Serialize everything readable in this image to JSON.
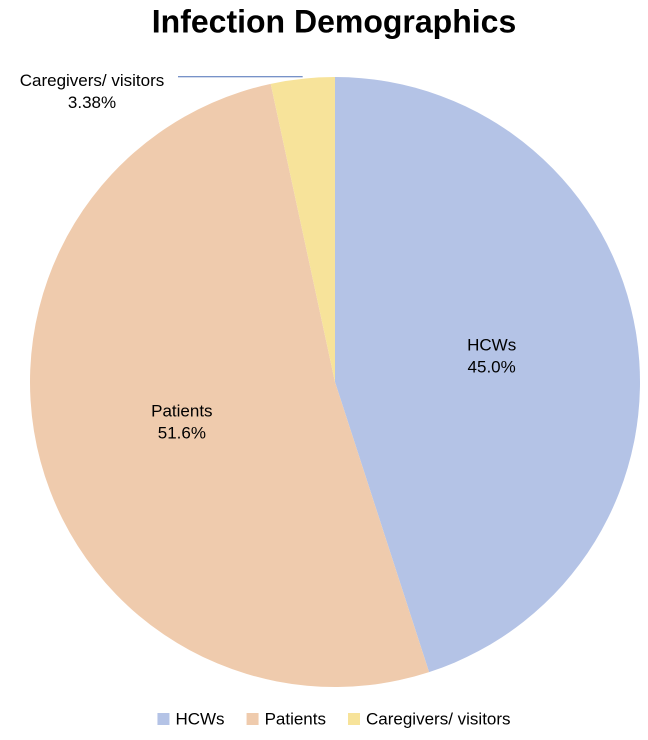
{
  "chart_data": {
    "type": "pie",
    "title": "Infection Demographics",
    "categories": [
      "HCWs",
      "Patients",
      "Caregivers/ visitors"
    ],
    "values": [
      45.0,
      51.6,
      3.38
    ],
    "value_labels": [
      "45.0%",
      "51.6%",
      "3.38%"
    ],
    "colors": [
      "#b4c3e6",
      "#efcbad",
      "#f7e39a"
    ],
    "legend": "bottom"
  }
}
